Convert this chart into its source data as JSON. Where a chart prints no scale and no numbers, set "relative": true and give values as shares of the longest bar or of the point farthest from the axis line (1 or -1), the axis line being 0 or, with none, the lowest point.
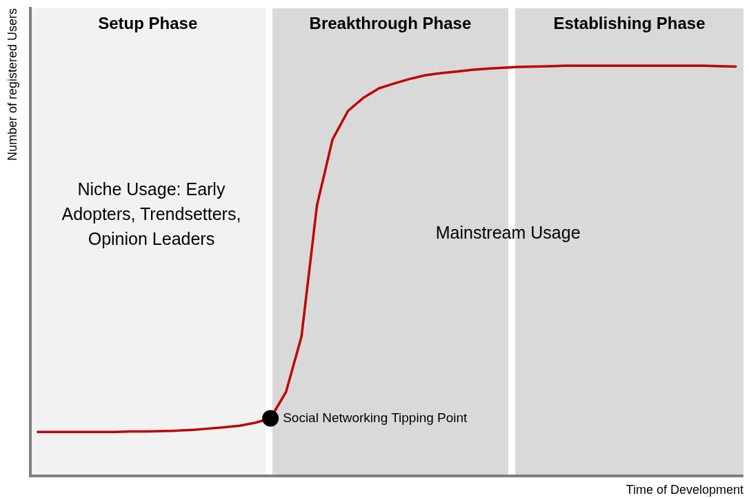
{
  "chart_data": {
    "type": "line",
    "relative": true,
    "xlabel": "Time of Development",
    "ylabel": "Number of registered Users",
    "tick_labels": false,
    "grid": false,
    "legend": false,
    "categories": [
      null,
      null,
      null,
      null,
      null,
      null,
      null,
      null,
      null,
      null,
      null,
      null,
      null,
      null,
      null,
      null,
      null,
      null,
      null,
      null,
      null,
      null,
      null,
      null,
      null,
      null,
      null,
      null,
      null,
      null,
      null,
      null,
      null,
      null,
      null,
      null,
      null,
      null,
      null,
      null,
      null,
      null,
      null,
      null,
      null,
      null
    ],
    "series": [
      {
        "type": "line",
        "color": "#c00000",
        "marker": "none",
        "line_style": "solid",
        "values": [
          0.108,
          0.108,
          0.108,
          0.108,
          0.108,
          0.108,
          0.109,
          0.109,
          0.11,
          0.111,
          0.113,
          0.116,
          0.119,
          0.123,
          0.13,
          0.141,
          0.205,
          0.34,
          0.66,
          0.82,
          0.89,
          0.922,
          0.945,
          0.957,
          0.968,
          0.977,
          0.982,
          0.986,
          0.99,
          0.993,
          0.995,
          0.997,
          0.998,
          0.999,
          1,
          1,
          1,
          1,
          1,
          1,
          1,
          1,
          1,
          1,
          0.999,
          0.998
        ]
      }
    ],
    "annotations": [
      "Setup Phase",
      "Breakthrough Phase",
      "Establishing Phase",
      "Niche Usage: Early Adopters, Trendsetters, Opinion Leaders",
      "Mainstream Usage",
      "Social Networking Tipping Point"
    ]
  }
}
